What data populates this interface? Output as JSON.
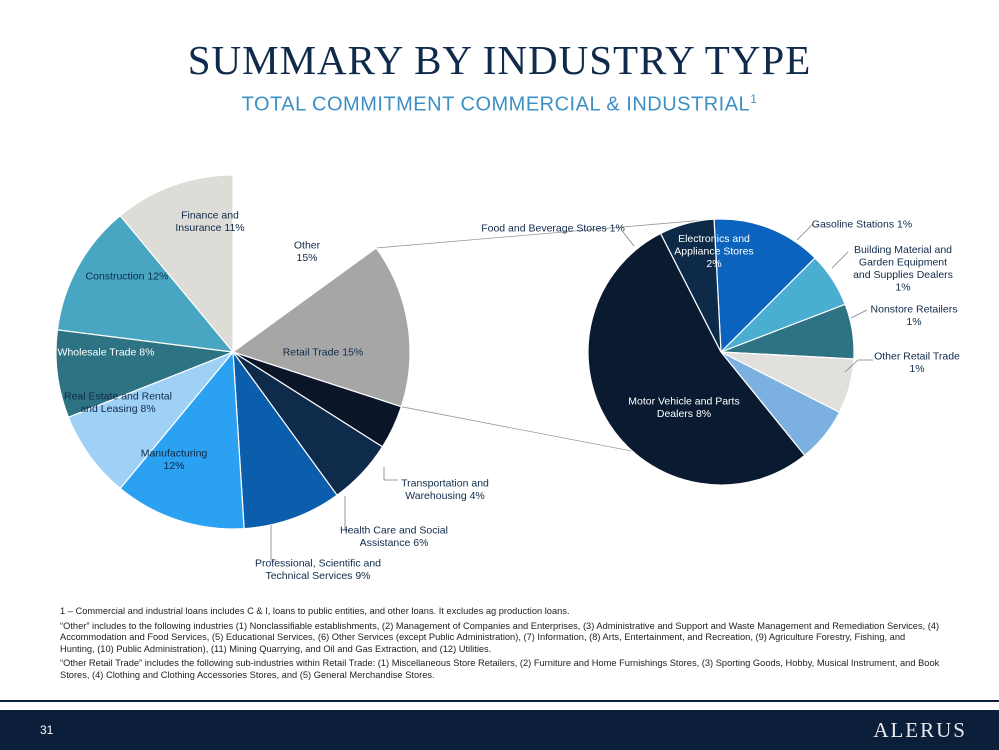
{
  "header": {
    "title": "SUMMARY BY INDUSTRY TYPE",
    "subtitle": "TOTAL COMMITMENT COMMERCIAL & INDUSTRIAL",
    "subtitle_sup": "1"
  },
  "chart_data": [
    {
      "type": "pie",
      "title": "",
      "slices": [
        {
          "label": "Other",
          "value": 15,
          "display": "Other\n15%",
          "color": "#ffffff",
          "text_color": "#0f2a4a"
        },
        {
          "label": "Retail Trade",
          "value": 15,
          "display": "Retail Trade 15%",
          "color": "#a6a6a6",
          "text_color": "#0f2a4a"
        },
        {
          "label": "Transportation and Warehousing",
          "value": 4,
          "display": "Transportation and\nWarehousing 4%",
          "color": "#0a1628",
          "text_color": "#0f2a4a"
        },
        {
          "label": "Health Care and Social Assistance",
          "value": 6,
          "display": "Health Care and Social\nAssistance 6%",
          "color": "#0e2b4c",
          "text_color": "#0f2a4a"
        },
        {
          "label": "Professional, Scientific and Technical Services",
          "value": 9,
          "display": "Professional, Scientific and\nTechnical Services 9%",
          "color": "#0b5eab",
          "text_color": "#0f2a4a"
        },
        {
          "label": "Manufacturing",
          "value": 12,
          "display": "Manufacturing\n12%",
          "color": "#2aa1f1",
          "text_color": "#0f2a4a"
        },
        {
          "label": "Real Estate and Rental and Leasing",
          "value": 8,
          "display": "Real Estate and Rental\nand Leasing 8%",
          "color": "#9fd0f6",
          "text_color": "#0f2a4a"
        },
        {
          "label": "Wholesale Trade",
          "value": 8,
          "display": "Wholesale Trade 8%",
          "color": "#2e7383",
          "text_color": "#ffffff"
        },
        {
          "label": "Construction",
          "value": 12,
          "display": "Construction 12%",
          "color": "#48a6c3",
          "text_color": "#0f2a4a"
        },
        {
          "label": "Finance and Insurance",
          "value": 11,
          "display": "Finance and\nInsurance 11%",
          "color": "#dedcd6",
          "text_color": "#0f2a4a"
        }
      ]
    },
    {
      "type": "pie",
      "title": "",
      "slices": [
        {
          "label": "Electronics and Appliance Stores",
          "value": 2,
          "display": "Electronics and\nAppliance Stores\n2%",
          "color": "#0b63bd",
          "text_color": "#ffffff"
        },
        {
          "label": "Gasoline Stations",
          "value": 1,
          "display": "Gasoline Stations 1%",
          "color": "#4aaed0",
          "text_color": "#0f2a4a"
        },
        {
          "label": "Building Material and Garden Equipment and Supplies Dealers",
          "value": 1,
          "display": "Building Material and\nGarden Equipment\nand Supplies Dealers\n1%",
          "color": "#2e7383",
          "text_color": "#0f2a4a"
        },
        {
          "label": "Nonstore Retailers",
          "value": 1,
          "display": "Nonstore Retailers\n1%",
          "color": "#e2e0da",
          "text_color": "#0f2a4a"
        },
        {
          "label": "Other Retail Trade",
          "value": 1,
          "display": "Other Retail Trade\n1%",
          "color": "#7bb0e0",
          "text_color": "#0f2a4a"
        },
        {
          "label": "Motor Vehicle and Parts Dealers",
          "value": 8,
          "display": "Motor Vehicle and Parts\nDealers 8%",
          "color": "#0a1a30",
          "text_color": "#ffffff"
        },
        {
          "label": "Food and Beverage Stores",
          "value": 1,
          "display": "Food and Beverage Stores 1%",
          "color": "#0d2a48",
          "text_color": "#0f2a4a"
        }
      ]
    }
  ],
  "notes": {
    "note1": "1 – Commercial and industrial loans includes C & I, loans to public entities, and other loans. It excludes ag production loans.",
    "note2": "“Other” includes to the following industries (1) Nonclassifiable establishments, (2) Management of Companies and Enterprises, (3) Administrative and Support and Waste Management and Remediation Services, (4) Accommodation and Food Services, (5) Educational Services, (6) Other Services (except Public Administration), (7) Information, (8) Arts, Entertainment, and Recreation, (9) Agriculture Forestry, Fishing, and Hunting, (10) Public Administration), (11) Mining Quarrying, and Oil and Gas Extraction, and (12) Utilities.",
    "note3": "“Other Retail Trade” includes the following sub-industries within Retail Trade: (1) Miscellaneous Store Retailers, (2) Furniture and Home Furnishings Stores, (3) Sporting Goods, Hobby, Musical Instrument, and Book Stores, (4) Clothing and Clothing Accessories Stores, and (5) General Merchandise Stores."
  },
  "footer": {
    "page_number": "31",
    "logo": "ALERUS"
  }
}
